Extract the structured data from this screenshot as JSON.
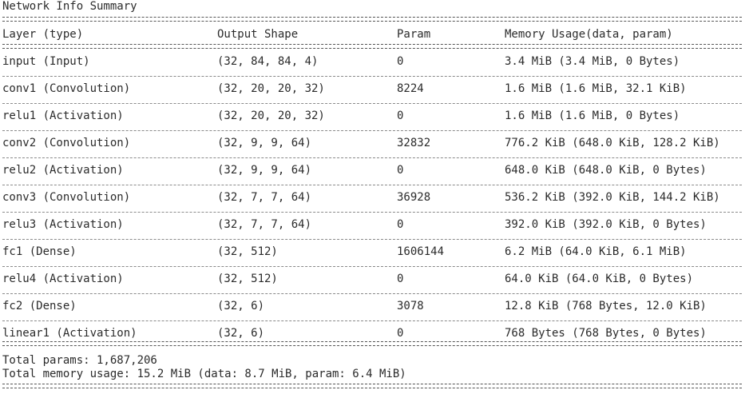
{
  "title": "Network Info Summary",
  "columns": [
    "Layer (type)",
    "Output Shape",
    "Param",
    "Memory Usage(data, param)"
  ],
  "rows": [
    {
      "layer": "input (Input)",
      "shape": "(32, 84, 84, 4)",
      "param": "0",
      "memory": "3.4 MiB (3.4 MiB, 0 Bytes)"
    },
    {
      "layer": "conv1 (Convolution)",
      "shape": "(32, 20, 20, 32)",
      "param": "8224",
      "memory": "1.6 MiB (1.6 MiB, 32.1 KiB)"
    },
    {
      "layer": "relu1 (Activation)",
      "shape": "(32, 20, 20, 32)",
      "param": "0",
      "memory": "1.6 MiB (1.6 MiB, 0 Bytes)"
    },
    {
      "layer": "conv2 (Convolution)",
      "shape": "(32, 9, 9, 64)",
      "param": "32832",
      "memory": "776.2 KiB (648.0 KiB, 128.2 KiB)"
    },
    {
      "layer": "relu2 (Activation)",
      "shape": "(32, 9, 9, 64)",
      "param": "0",
      "memory": "648.0 KiB (648.0 KiB, 0 Bytes)"
    },
    {
      "layer": "conv3 (Convolution)",
      "shape": "(32, 7, 7, 64)",
      "param": "36928",
      "memory": "536.2 KiB (392.0 KiB, 144.2 KiB)"
    },
    {
      "layer": "relu3 (Activation)",
      "shape": "(32, 7, 7, 64)",
      "param": "0",
      "memory": "392.0 KiB (392.0 KiB, 0 Bytes)"
    },
    {
      "layer": "fc1 (Dense)",
      "shape": "(32, 512)",
      "param": "1606144",
      "memory": "6.2 MiB (64.0 KiB, 6.1 MiB)"
    },
    {
      "layer": "relu4 (Activation)",
      "shape": "(32, 512)",
      "param": "0",
      "memory": "64.0 KiB (64.0 KiB, 0 Bytes)"
    },
    {
      "layer": "fc2 (Dense)",
      "shape": "(32, 6)",
      "param": "3078",
      "memory": "12.8 KiB (768 Bytes, 12.0 KiB)"
    },
    {
      "layer": "linear1 (Activation)",
      "shape": "(32, 6)",
      "param": "0",
      "memory": "768 Bytes (768 Bytes, 0 Bytes)"
    }
  ],
  "total_params": "Total params: 1,687,206",
  "total_memory": "Total memory usage: 15.2 MiB (data: 8.7 MiB, param: 6.4 MiB)"
}
